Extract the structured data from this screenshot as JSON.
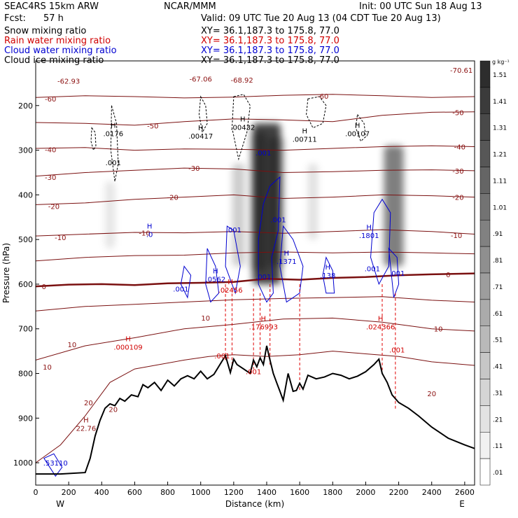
{
  "header": {
    "model": "SEAC4RS 15km ARW",
    "center": "NCAR/MMM",
    "init": "Init: 00 UTC Sun 18 Aug 13",
    "fcst_label": "Fcst:",
    "fcst_value": "57 h",
    "valid": "Valid: 09 UTC Tue 20 Aug 13 (04 CDT Tue 20 Aug 13)"
  },
  "fields": [
    {
      "name": "Snow mixing ratio",
      "xy": "XY=  36.1,187.3 to 175.8, 77.0",
      "color": "#000000"
    },
    {
      "name": "Rain water mixing ratio",
      "xy": "XY=  36.1,187.3 to 175.8, 77.0",
      "color": "#d00000"
    },
    {
      "name": "Cloud water mixing ratio",
      "xy": "XY=  36.1,187.3 to 175.8, 77.0",
      "color": "#0000d0"
    },
    {
      "name": "Cloud ice mixing ratio",
      "xy": "XY=  36.1,187.3 to 175.8, 77.0",
      "color": "#000000"
    }
  ],
  "chart_data": {
    "type": "contour",
    "xlabel": "Distance (km)",
    "ylabel": "Pressure (hPa)",
    "xlim": [
      0,
      2660
    ],
    "ylim": [
      1050,
      100
    ],
    "x_ticks": [
      0,
      200,
      400,
      600,
      800,
      1000,
      1200,
      1400,
      1600,
      1800,
      2000,
      2200,
      2400,
      2600
    ],
    "y_ticks": [
      200,
      300,
      400,
      500,
      600,
      700,
      800,
      900,
      1000
    ],
    "west_label": "W",
    "east_label": "E",
    "colorbar": {
      "unit": "g kg⁻¹",
      "levels": [
        "1.51",
        "1.41",
        "1.31",
        "1.21",
        "1.11",
        "1.01",
        ".91",
        ".81",
        ".71",
        ".61",
        ".51",
        ".41",
        ".31",
        ".21",
        ".11",
        ".01"
      ]
    },
    "temperature_labels": [
      {
        "text": "-62.93",
        "x": 200,
        "p": 145
      },
      {
        "text": "-67.06",
        "x": 1000,
        "p": 140
      },
      {
        "text": "-68.92",
        "x": 1250,
        "p": 142
      },
      {
        "text": "-70.61",
        "x": 2580,
        "p": 120
      },
      {
        "text": "-60",
        "x": 90,
        "p": 185
      },
      {
        "text": "-60",
        "x": 1740,
        "p": 178
      },
      {
        "text": "-50",
        "x": 710,
        "p": 245
      },
      {
        "text": "-50",
        "x": 2560,
        "p": 215
      },
      {
        "text": "-40",
        "x": 90,
        "p": 298
      },
      {
        "text": "-40",
        "x": 2570,
        "p": 292
      },
      {
        "text": "-30",
        "x": 90,
        "p": 360
      },
      {
        "text": "-30",
        "x": 960,
        "p": 340
      },
      {
        "text": "-30",
        "x": 2560,
        "p": 346
      },
      {
        "text": "-20",
        "x": 110,
        "p": 425
      },
      {
        "text": "-20",
        "x": 830,
        "p": 405
      },
      {
        "text": "-20",
        "x": 2560,
        "p": 405
      },
      {
        "text": "-10",
        "x": 150,
        "p": 495
      },
      {
        "text": "-10",
        "x": 660,
        "p": 485
      },
      {
        "text": "-10",
        "x": 2550,
        "p": 490
      },
      {
        "text": "0",
        "x": 50,
        "p": 605
      },
      {
        "text": "0",
        "x": 2500,
        "p": 578
      },
      {
        "text": "10",
        "x": 1030,
        "p": 675
      },
      {
        "text": "10",
        "x": 2440,
        "p": 700
      },
      {
        "text": "10",
        "x": 220,
        "p": 735
      },
      {
        "text": "10",
        "x": 70,
        "p": 785
      },
      {
        "text": "20",
        "x": 320,
        "p": 865
      },
      {
        "text": "20",
        "x": 470,
        "p": 880
      },
      {
        "text": "20",
        "x": 2400,
        "p": 845
      }
    ],
    "isotherms": [
      {
        "t": -60,
        "x": [
          0,
          300,
          600,
          900,
          1200,
          1500,
          1800,
          2100,
          2400,
          2660
        ],
        "p": [
          182,
          178,
          180,
          183,
          181,
          177,
          175,
          178,
          182,
          180
        ]
      },
      {
        "t": -50,
        "x": [
          0,
          300,
          600,
          900,
          1200,
          1500,
          1800,
          2100,
          2400,
          2660
        ],
        "p": [
          238,
          240,
          244,
          236,
          230,
          232,
          236,
          222,
          215,
          214
        ]
      },
      {
        "t": -40,
        "x": [
          0,
          300,
          600,
          900,
          1200,
          1500,
          1800,
          2100,
          2400,
          2660
        ],
        "p": [
          296,
          294,
          300,
          297,
          298,
          300,
          296,
          292,
          290,
          292
        ]
      },
      {
        "t": -30,
        "x": [
          0,
          300,
          600,
          900,
          1200,
          1500,
          1800,
          2100,
          2400,
          2660
        ],
        "p": [
          358,
          350,
          345,
          340,
          342,
          350,
          348,
          345,
          344,
          346
        ]
      },
      {
        "t": -20,
        "x": [
          0,
          300,
          600,
          900,
          1200,
          1500,
          1800,
          2100,
          2400,
          2660
        ],
        "p": [
          422,
          418,
          410,
          405,
          400,
          408,
          405,
          400,
          402,
          405
        ]
      },
      {
        "t": -10,
        "x": [
          0,
          300,
          600,
          900,
          1200,
          1500,
          1800,
          2100,
          2400,
          2660
        ],
        "p": [
          492,
          488,
          484,
          485,
          482,
          486,
          482,
          478,
          482,
          488
        ]
      },
      {
        "t": -5,
        "x": [
          0,
          300,
          600,
          900,
          1200,
          1500,
          1800,
          2100,
          2400,
          2660
        ],
        "p": [
          548,
          540,
          536,
          535,
          530,
          528,
          530,
          528,
          530,
          532
        ]
      },
      {
        "t": 0,
        "x": [
          0,
          200,
          400,
          600,
          800,
          1000,
          1200,
          1400,
          1600,
          1800,
          2000,
          2200,
          2400,
          2660
        ],
        "p": [
          605,
          601,
          600,
          602,
          598,
          597,
          595,
          588,
          590,
          586,
          584,
          580,
          578,
          576
        ]
      },
      {
        "t": 5,
        "x": [
          0,
          300,
          600,
          900,
          1200,
          1500,
          1800,
          2100,
          2400,
          2660
        ],
        "p": [
          660,
          650,
          645,
          640,
          635,
          632,
          630,
          628,
          636,
          640
        ]
      },
      {
        "t": 10,
        "x": [
          0,
          300,
          600,
          900,
          1200,
          1500,
          1800,
          2100,
          2400,
          2660
        ],
        "p": [
          770,
          738,
          720,
          700,
          690,
          678,
          676,
          685,
          700,
          705
        ]
      },
      {
        "t": 15,
        "x": [
          0,
          150,
          300,
          450,
          600,
          750,
          900,
          1050,
          1200,
          1400,
          1600,
          1800,
          2000,
          2200,
          2400,
          2660
        ],
        "p": [
          1000,
          960,
          895,
          820,
          790,
          780,
          770,
          762,
          758,
          762,
          758,
          750,
          756,
          762,
          774,
          782
        ]
      }
    ],
    "terrain": {
      "x": [
        0,
        150,
        300,
        330,
        360,
        390,
        420,
        450,
        480,
        510,
        540,
        580,
        620,
        650,
        680,
        720,
        760,
        800,
        840,
        880,
        920,
        960,
        1000,
        1040,
        1080,
        1120,
        1150,
        1180,
        1200,
        1220,
        1260,
        1300,
        1320,
        1340,
        1360,
        1380,
        1400,
        1420,
        1440,
        1460,
        1480,
        1500,
        1530,
        1560,
        1580,
        1600,
        1620,
        1650,
        1700,
        1750,
        1800,
        1850,
        1900,
        1950,
        2000,
        2050,
        2080,
        2100,
        2130,
        2160,
        2200,
        2260,
        2320,
        2400,
        2500,
        2600,
        2660
      ],
      "p": [
        1025,
        1025,
        1022,
        990,
        940,
        905,
        878,
        868,
        872,
        856,
        862,
        848,
        852,
        825,
        832,
        820,
        838,
        815,
        828,
        812,
        805,
        812,
        795,
        812,
        802,
        778,
        760,
        798,
        768,
        780,
        790,
        800,
        770,
        785,
        765,
        780,
        738,
        770,
        800,
        820,
        840,
        860,
        800,
        840,
        838,
        822,
        835,
        804,
        812,
        808,
        800,
        804,
        812,
        806,
        796,
        780,
        768,
        800,
        820,
        848,
        865,
        878,
        895,
        920,
        945,
        960,
        968
      ]
    },
    "features": [
      {
        "label": "H",
        "value": ".0176",
        "x": 470,
        "p": 262
      },
      {
        "label": "H",
        "value": ".00417",
        "x": 1000,
        "p": 268
      },
      {
        "label": "H",
        "value": ".00432",
        "x": 1255,
        "p": 248
      },
      {
        "label": "H",
        "value": ".00711",
        "x": 1630,
        "p": 275
      },
      {
        "label": "H",
        "value": ".00107",
        "x": 1950,
        "p": 262
      },
      {
        "label": "H",
        "value": ".0",
        "x": 690,
        "p": 488
      },
      {
        "label": "H",
        "value": ".1801",
        "x": 2020,
        "p": 490
      },
      {
        "label": "H",
        "value": ".176993",
        "x": 1380,
        "p": 695
      },
      {
        "label": "H",
        "value": ".024366",
        "x": 2090,
        "p": 695
      },
      {
        "label": "H",
        "value": ".000109",
        "x": 560,
        "p": 740
      },
      {
        "label": "H",
        "value": "22.76",
        "x": 305,
        "p": 922
      },
      {
        "label": "H",
        "value": ".0562",
        "x": 1090,
        "p": 588
      },
      {
        "label": "H",
        "value": ".02456",
        "x": 1180,
        "p": 613
      },
      {
        "label": "H",
        "value": ".1371",
        "x": 1520,
        "p": 548
      },
      {
        "label": "H",
        "value": ".138",
        "x": 1770,
        "p": 580
      },
      {
        "label": "",
        "value": ".001",
        "x": 1470,
        "p": 455
      },
      {
        "label": "",
        "value": ".001",
        "x": 1200,
        "p": 478
      },
      {
        "label": "",
        "value": ".001",
        "x": 880,
        "p": 610
      },
      {
        "label": "",
        "value": ".001",
        "x": 1380,
        "p": 583
      },
      {
        "label": "",
        "value": ".001",
        "x": 2040,
        "p": 565
      },
      {
        "label": "",
        "value": ".001",
        "x": 2190,
        "p": 575
      },
      {
        "label": "",
        "value": ".001",
        "x": 2190,
        "p": 747
      },
      {
        "label": "",
        "value": ".001",
        "x": 1130,
        "p": 760
      },
      {
        "label": "",
        "value": ".001",
        "x": 1320,
        "p": 795
      },
      {
        "label": "",
        "value": ".001",
        "x": 1380,
        "p": 305
      },
      {
        "label": "",
        "value": ".001",
        "x": 470,
        "p": 327
      },
      {
        "label": "",
        "value": ".53110",
        "x": 120,
        "p": 1000
      }
    ],
    "snow_columns": [
      {
        "x": 1400,
        "top": 240,
        "bottom": 600,
        "w": 40,
        "op": 0.75
      },
      {
        "x": 1350,
        "top": 260,
        "bottom": 570,
        "w": 22,
        "op": 0.3
      },
      {
        "x": 1460,
        "top": 270,
        "bottom": 560,
        "w": 22,
        "op": 0.3
      },
      {
        "x": 2170,
        "top": 290,
        "bottom": 560,
        "w": 28,
        "op": 0.5
      },
      {
        "x": 1230,
        "top": 330,
        "bottom": 560,
        "w": 18,
        "op": 0.2
      },
      {
        "x": 450,
        "top": 370,
        "bottom": 520,
        "w": 14,
        "op": 0.1
      },
      {
        "x": 1680,
        "top": 330,
        "bottom": 500,
        "w": 14,
        "op": 0.12
      }
    ],
    "cloud_water": [
      {
        "x": [
          1380,
          1420,
          1480,
          1470,
          1430,
          1440,
          1400,
          1350,
          1350,
          1380
        ],
        "p": [
          420,
          380,
          360,
          480,
          540,
          620,
          640,
          600,
          500,
          420
        ]
      },
      {
        "x": [
          1500,
          1560,
          1620,
          1600,
          1520,
          1480,
          1500
        ],
        "p": [
          470,
          500,
          560,
          620,
          640,
          560,
          470
        ]
      },
      {
        "x": [
          1160,
          1200,
          1240,
          1210,
          1150,
          1160
        ],
        "p": [
          470,
          480,
          560,
          620,
          560,
          470
        ]
      },
      {
        "x": [
          900,
          940,
          920,
          880,
          900
        ],
        "p": [
          560,
          580,
          630,
          600,
          560
        ]
      },
      {
        "x": [
          1040,
          1090,
          1110,
          1060,
          1030,
          1040
        ],
        "p": [
          520,
          560,
          620,
          640,
          600,
          520
        ]
      },
      {
        "x": [
          2050,
          2100,
          2150,
          2140,
          2080,
          2030,
          2050
        ],
        "p": [
          440,
          410,
          440,
          560,
          600,
          540,
          440
        ]
      },
      {
        "x": [
          2140,
          2190,
          2200,
          2170,
          2140
        ],
        "p": [
          520,
          540,
          600,
          630,
          520
        ]
      },
      {
        "x": [
          1760,
          1800,
          1810,
          1760,
          1740,
          1760
        ],
        "p": [
          540,
          570,
          620,
          620,
          580,
          540
        ]
      },
      {
        "x": [
          50,
          110,
          160,
          120,
          50
        ],
        "p": [
          990,
          980,
          1010,
          1030,
          990
        ]
      }
    ],
    "ice_contours": [
      {
        "x": [
          460,
          490,
          500,
          480,
          455,
          460
        ],
        "p": [
          200,
          240,
          330,
          370,
          300,
          200
        ]
      },
      {
        "x": [
          1000,
          1030,
          1040,
          1010,
          990,
          1000
        ],
        "p": [
          180,
          200,
          240,
          260,
          220,
          180
        ]
      },
      {
        "x": [
          1200,
          1260,
          1300,
          1280,
          1230,
          1190,
          1200
        ],
        "p": [
          180,
          175,
          200,
          260,
          320,
          250,
          180
        ]
      },
      {
        "x": [
          1650,
          1720,
          1760,
          1740,
          1680,
          1640,
          1650
        ],
        "p": [
          185,
          180,
          200,
          240,
          250,
          220,
          185
        ]
      },
      {
        "x": [
          1950,
          1990,
          2000,
          1970,
          1940,
          1950
        ],
        "p": [
          220,
          240,
          270,
          280,
          250,
          220
        ]
      },
      {
        "x": [
          340,
          360,
          365,
          350,
          335,
          340
        ],
        "p": [
          250,
          260,
          290,
          300,
          280,
          250
        ]
      }
    ],
    "rain_lines": [
      {
        "x": 1150,
        "top": 600,
        "bottom": 770
      },
      {
        "x": 1190,
        "top": 610,
        "bottom": 790
      },
      {
        "x": 1320,
        "top": 610,
        "bottom": 790
      },
      {
        "x": 1360,
        "top": 620,
        "bottom": 760
      },
      {
        "x": 1420,
        "top": 600,
        "bottom": 780
      },
      {
        "x": 1600,
        "top": 600,
        "bottom": 840
      },
      {
        "x": 2100,
        "top": 600,
        "bottom": 800
      },
      {
        "x": 2180,
        "top": 620,
        "bottom": 880
      }
    ]
  }
}
